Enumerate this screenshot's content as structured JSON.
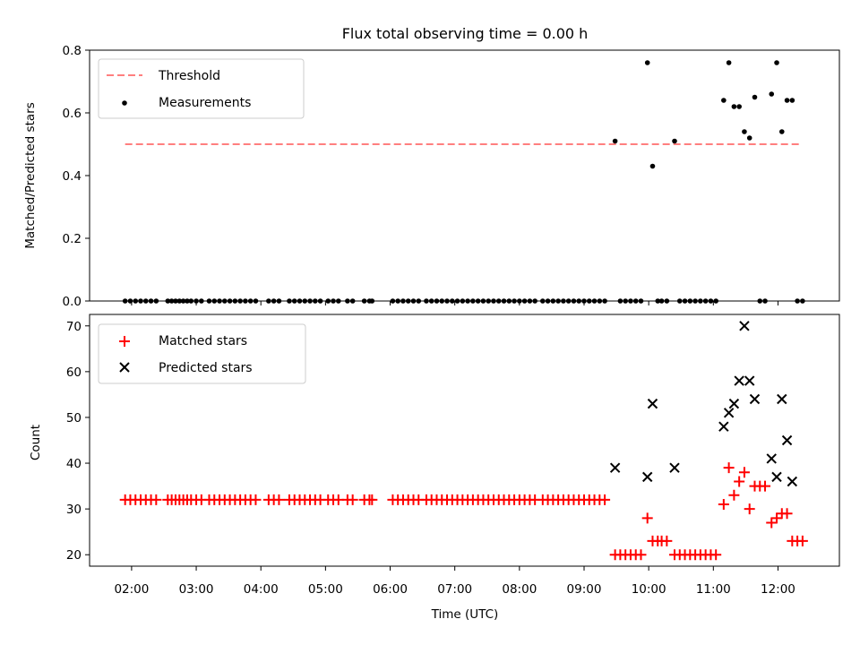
{
  "chart_data": [
    {
      "type": "scatter",
      "title": "Flux total observing time = 0.00 h",
      "xlabel": "",
      "ylabel": "Matched/Predicted stars",
      "ylim": [
        0,
        0.8
      ],
      "yticks": [
        "0.0",
        "0.2",
        "0.4",
        "0.6",
        "0.8"
      ],
      "legend_position": "top-left",
      "threshold": {
        "name": "Threshold",
        "value": 0.5,
        "x_start": 1.9,
        "x_end": 12.35,
        "color": "#ff7f7f"
      },
      "series": [
        {
          "name": "Measurements",
          "color": "#000000",
          "x": [
            1.9,
            1.98,
            2.06,
            2.14,
            2.22,
            2.3,
            2.38,
            2.56,
            2.62,
            2.68,
            2.74,
            2.8,
            2.86,
            2.92,
            3.0,
            3.08,
            3.2,
            3.28,
            3.36,
            3.44,
            3.52,
            3.6,
            3.68,
            3.76,
            3.84,
            3.92,
            4.12,
            4.2,
            4.28,
            4.44,
            4.52,
            4.6,
            4.68,
            4.76,
            4.84,
            4.92,
            5.04,
            5.12,
            5.2,
            5.34,
            5.42,
            5.6,
            5.68,
            5.72,
            6.04,
            6.12,
            6.2,
            6.28,
            6.36,
            6.44,
            6.56,
            6.64,
            6.72,
            6.8,
            6.88,
            6.96,
            7.04,
            7.12,
            7.2,
            7.28,
            7.36,
            7.44,
            7.52,
            7.6,
            7.68,
            7.76,
            7.84,
            7.92,
            8.0,
            8.08,
            8.16,
            8.24,
            8.36,
            8.44,
            8.52,
            8.6,
            8.68,
            8.76,
            8.84,
            8.92,
            9.0,
            9.08,
            9.16,
            9.24,
            9.32,
            9.48,
            9.56,
            9.64,
            9.72,
            9.8,
            9.88,
            9.98,
            10.06,
            10.14,
            10.2,
            10.28,
            10.4,
            10.48,
            10.56,
            10.64,
            10.72,
            10.8,
            10.88,
            10.96,
            11.04,
            11.16,
            11.24,
            11.32,
            11.4,
            11.48,
            11.56,
            11.64,
            11.72,
            11.8,
            11.9,
            11.98,
            12.06,
            12.14,
            12.22,
            12.3,
            12.38
          ],
          "y": [
            0,
            0,
            0,
            0,
            0,
            0,
            0,
            0,
            0,
            0,
            0,
            0,
            0,
            0,
            0,
            0,
            0,
            0,
            0,
            0,
            0,
            0,
            0,
            0,
            0,
            0,
            0,
            0,
            0,
            0,
            0,
            0,
            0,
            0,
            0,
            0,
            0,
            0,
            0,
            0,
            0,
            0,
            0,
            0,
            0,
            0,
            0,
            0,
            0,
            0,
            0,
            0,
            0,
            0,
            0,
            0,
            0,
            0,
            0,
            0,
            0,
            0,
            0,
            0,
            0,
            0,
            0,
            0,
            0,
            0,
            0,
            0,
            0,
            0,
            0,
            0,
            0,
            0,
            0,
            0,
            0,
            0,
            0,
            0,
            0,
            0.51,
            0,
            0,
            0,
            0,
            0,
            0.76,
            0.43,
            0,
            0,
            0,
            0.51,
            0,
            0,
            0,
            0,
            0,
            0,
            0,
            0,
            0.64,
            0.76,
            0.62,
            0.62,
            0.54,
            0.52,
            0.65,
            0,
            0,
            0.66,
            0.76,
            0.54,
            0.64,
            0.64,
            0,
            0
          ]
        }
      ]
    },
    {
      "type": "scatter",
      "title": "",
      "xlabel": "Time (UTC)",
      "ylabel": "Count",
      "ylim": [
        17.5,
        72.5
      ],
      "yticks": [
        20,
        30,
        40,
        50,
        60,
        70
      ],
      "xlim": [
        1.35,
        12.95
      ],
      "xticks": [
        2,
        3,
        4,
        5,
        6,
        7,
        8,
        9,
        10,
        11,
        12
      ],
      "xtick_labels": [
        "02:00",
        "03:00",
        "04:00",
        "05:00",
        "06:00",
        "07:00",
        "08:00",
        "09:00",
        "10:00",
        "11:00",
        "12:00"
      ],
      "legend_position": "top-left",
      "series": [
        {
          "name": "Matched stars",
          "marker": "plus",
          "color": "#ff0000",
          "x": [
            1.9,
            1.98,
            2.06,
            2.14,
            2.22,
            2.3,
            2.38,
            2.56,
            2.62,
            2.68,
            2.74,
            2.8,
            2.86,
            2.92,
            3.0,
            3.08,
            3.2,
            3.28,
            3.36,
            3.44,
            3.52,
            3.6,
            3.68,
            3.76,
            3.84,
            3.92,
            4.12,
            4.2,
            4.28,
            4.44,
            4.52,
            4.6,
            4.68,
            4.76,
            4.84,
            4.92,
            5.04,
            5.12,
            5.2,
            5.34,
            5.42,
            5.6,
            5.68,
            5.72,
            6.04,
            6.12,
            6.2,
            6.28,
            6.36,
            6.44,
            6.56,
            6.64,
            6.72,
            6.8,
            6.88,
            6.96,
            7.04,
            7.12,
            7.2,
            7.28,
            7.36,
            7.44,
            7.52,
            7.6,
            7.68,
            7.76,
            7.84,
            7.92,
            8.0,
            8.08,
            8.16,
            8.24,
            8.36,
            8.44,
            8.52,
            8.6,
            8.68,
            8.76,
            8.84,
            8.92,
            9.0,
            9.08,
            9.16,
            9.24,
            9.32,
            9.48,
            9.56,
            9.64,
            9.72,
            9.8,
            9.88,
            9.98,
            10.06,
            10.14,
            10.2,
            10.28,
            10.4,
            10.48,
            10.56,
            10.64,
            10.72,
            10.8,
            10.88,
            10.96,
            11.04,
            11.16,
            11.24,
            11.32,
            11.4,
            11.48,
            11.56,
            11.64,
            11.72,
            11.8,
            11.9,
            11.98,
            12.06,
            12.14,
            12.22,
            12.3,
            12.38
          ],
          "y": [
            32,
            32,
            32,
            32,
            32,
            32,
            32,
            32,
            32,
            32,
            32,
            32,
            32,
            32,
            32,
            32,
            32,
            32,
            32,
            32,
            32,
            32,
            32,
            32,
            32,
            32,
            32,
            32,
            32,
            32,
            32,
            32,
            32,
            32,
            32,
            32,
            32,
            32,
            32,
            32,
            32,
            32,
            32,
            32,
            32,
            32,
            32,
            32,
            32,
            32,
            32,
            32,
            32,
            32,
            32,
            32,
            32,
            32,
            32,
            32,
            32,
            32,
            32,
            32,
            32,
            32,
            32,
            32,
            32,
            32,
            32,
            32,
            32,
            32,
            32,
            32,
            32,
            32,
            32,
            32,
            32,
            32,
            32,
            32,
            32,
            20,
            20,
            20,
            20,
            20,
            20,
            28,
            23,
            23,
            23,
            23,
            20,
            20,
            20,
            20,
            20,
            20,
            20,
            20,
            20,
            31,
            39,
            33,
            36,
            38,
            30,
            35,
            35,
            35,
            27,
            28,
            29,
            29,
            23,
            23,
            23
          ]
        },
        {
          "name": "Predicted stars",
          "marker": "x",
          "color": "#000000",
          "x": [
            9.48,
            9.98,
            10.06,
            10.4,
            11.16,
            11.24,
            11.32,
            11.4,
            11.48,
            11.56,
            11.64,
            11.9,
            11.98,
            12.06,
            12.14,
            12.22
          ],
          "y": [
            39,
            37,
            53,
            39,
            48,
            51,
            53,
            58,
            70,
            58,
            54,
            41,
            37,
            54,
            45,
            36
          ]
        }
      ]
    }
  ]
}
